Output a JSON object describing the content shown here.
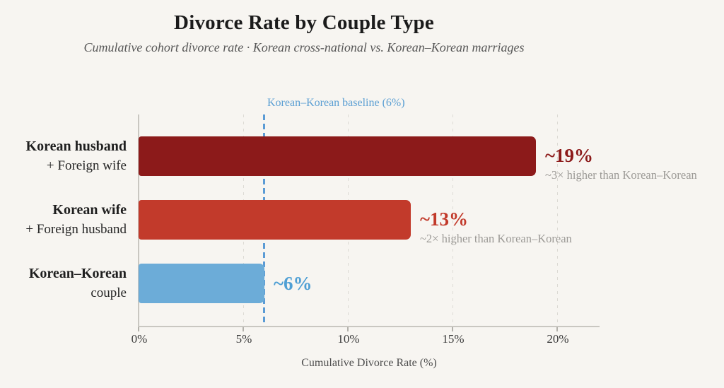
{
  "header": {
    "title": "Divorce Rate by Couple Type",
    "subtitle": "Cumulative cohort divorce rate · Korean cross-national vs. Korean–Korean marriages"
  },
  "chart_data": {
    "type": "bar",
    "orientation": "horizontal",
    "title": "Divorce Rate by Couple Type",
    "subtitle": "Cumulative cohort divorce rate · Korean cross-national vs. Korean–Korean marriages",
    "categories": [
      "Korean husband + Foreign wife",
      "Korean wife + Foreign husband",
      "Korean–Korean couple"
    ],
    "values": [
      19,
      13,
      6
    ],
    "value_labels": [
      "~19%",
      "~13%",
      "~6%"
    ],
    "annotations": [
      "~3× higher than Korean–Korean",
      "~2× higher than Korean–Korean",
      ""
    ],
    "bar_colors": [
      "#8c1a1a",
      "#c23a2b",
      "#6cacd8"
    ],
    "xlabel": "Cumulative Divorce Rate (%)",
    "xlim": [
      0,
      22
    ],
    "xtick_values": [
      0,
      5,
      10,
      15,
      20
    ],
    "xtick_labels": [
      "0%",
      "5%",
      "10%",
      "15%",
      "20%"
    ],
    "grid": "vertical dashed gridlines at ticks",
    "legend": "none",
    "baseline": {
      "value": 6,
      "label": "Korean–Korean baseline (6%)"
    }
  },
  "rows": [
    {
      "label_bold": "Korean husband",
      "label_rest": "+ Foreign wife",
      "value": 19,
      "value_label": "~19%",
      "annotation": "~3× higher than Korean–Korean",
      "color": "#8c1a1a",
      "value_color": "#8c1a1a"
    },
    {
      "label_bold": "Korean wife",
      "label_rest": "+ Foreign husband",
      "value": 13,
      "value_label": "~13%",
      "annotation": "~2× higher than Korean–Korean",
      "color": "#c23a2b",
      "value_color": "#c23a2b"
    },
    {
      "label_bold": "Korean–Korean",
      "label_rest": "couple",
      "value": 6,
      "value_label": "~6%",
      "annotation": "",
      "color": "#6cacd8",
      "value_color": "#4f9fd4"
    }
  ],
  "baseline": {
    "label": "Korean–Korean baseline (6%)",
    "value": 6,
    "line_color": "#5b9bd5",
    "label_color": "#5b9fd3"
  },
  "axis": {
    "tick_labels": [
      "0%",
      "5%",
      "10%",
      "15%",
      "20%"
    ],
    "xlabel": "Cumulative Divorce Rate (%)"
  },
  "colors": {
    "background": "#f7f5f1",
    "axis_line": "#c9c7c1",
    "gridline": "#dcdad4",
    "annotation_text": "#9c9a96",
    "title_text": "#1b1b1b",
    "subtitle_text": "#565656"
  }
}
